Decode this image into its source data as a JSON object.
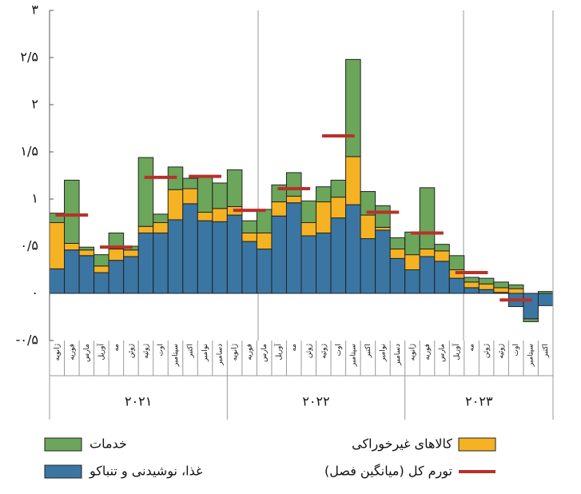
{
  "chart_data": {
    "type": "bar",
    "stacked": true,
    "categories": [
      "ژانویه",
      "فوریه",
      "مارس",
      "آوریل",
      "مه",
      "ژوئن",
      "ژوئیه",
      "اوت",
      "سپتامبر",
      "اکتبر",
      "نوامبر",
      "دسامبر",
      "ژانویه",
      "فوریه",
      "مارس",
      "آوریل",
      "مه",
      "ژوئن",
      "ژوئیه",
      "اوت",
      "سپتامبر",
      "اکتبر",
      "نوامبر",
      "دسامبر",
      "ژانویه",
      "فوریه",
      "مارس",
      "آوریل",
      "مه",
      "ژوئن",
      "ژوئیه",
      "اوت",
      "سپتامبر",
      "اکتبر"
    ],
    "years": [
      "۲۰۲۱",
      "۲۰۲۲",
      "۲۰۲۳"
    ],
    "series": [
      {
        "name": "غذا، نوشیدنی و تنباکو",
        "color": "#3b76a3",
        "values": [
          0.26,
          0.46,
          0.4,
          0.22,
          0.35,
          0.39,
          0.64,
          0.64,
          0.78,
          0.95,
          0.77,
          0.76,
          0.83,
          0.55,
          0.47,
          0.82,
          0.96,
          0.61,
          0.64,
          0.8,
          0.94,
          0.58,
          0.67,
          0.37,
          0.25,
          0.39,
          0.34,
          0.16,
          0.06,
          0.04,
          0.01,
          -0.14,
          -0.27,
          -0.13
        ]
      },
      {
        "name": "کالاهای غیرخوراکی",
        "color": "#f5b223",
        "values": [
          0.49,
          0.07,
          0.06,
          0.07,
          0.12,
          0.07,
          0.07,
          0.11,
          0.32,
          0.16,
          0.09,
          0.14,
          0.09,
          0.09,
          0.17,
          0.15,
          0.07,
          0.14,
          0.33,
          0.22,
          0.51,
          0.25,
          0.03,
          0.1,
          0.16,
          0.08,
          0.11,
          0.09,
          0.06,
          0.06,
          0.05,
          0.05,
          0,
          0
        ]
      },
      {
        "name": "خدمات",
        "color": "#6ba65b",
        "values": [
          0.1,
          0.67,
          0.03,
          0.12,
          0.17,
          0.04,
          0.73,
          0.09,
          0.24,
          0.11,
          0.39,
          0.27,
          0.39,
          0.13,
          0.25,
          0.18,
          0.25,
          0.23,
          0.16,
          0.18,
          1.03,
          0.25,
          0.23,
          0.12,
          0.24,
          0.65,
          0.07,
          0.15,
          0.05,
          0.06,
          0.06,
          0.04,
          -0.03,
          0.02
        ]
      }
    ],
    "average": {
      "name": "تورم کل (میانگین فصل)",
      "color": "#b8312b",
      "values": [
        0.83,
        0.49,
        1.23,
        1.24,
        0.88,
        1.11,
        1.67,
        0.86,
        0.64,
        0.22,
        -0.07
      ]
    },
    "ylim": [
      -0.5,
      3
    ],
    "yticks": [
      {
        "value": -0.5,
        "label": "-۰/۵"
      },
      {
        "value": 0,
        "label": "۰"
      },
      {
        "value": 0.5,
        "label": "۰/۵"
      },
      {
        "value": 1,
        "label": "۱"
      },
      {
        "value": 1.5,
        "label": "۱/۵"
      },
      {
        "value": 2,
        "label": "۲"
      },
      {
        "value": 2.5,
        "label": "۲/۵"
      },
      {
        "value": 3,
        "label": "۳"
      }
    ]
  }
}
